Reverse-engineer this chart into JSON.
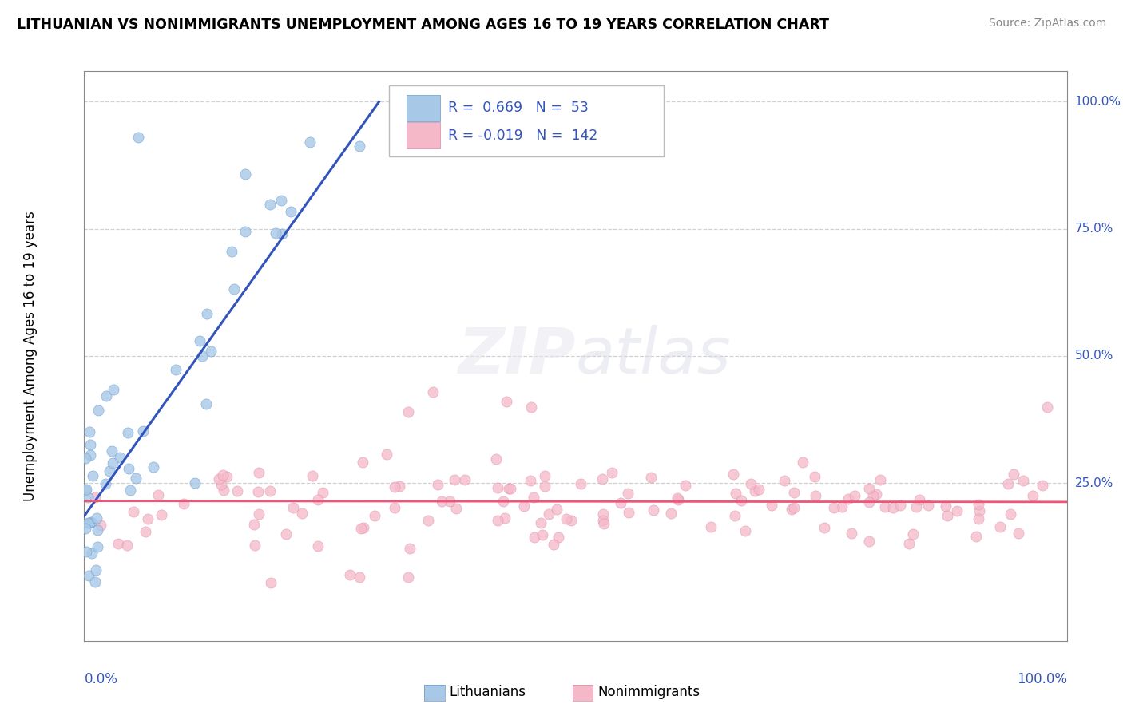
{
  "title": "LITHUANIAN VS NONIMMIGRANTS UNEMPLOYMENT AMONG AGES 16 TO 19 YEARS CORRELATION CHART",
  "source": "Source: ZipAtlas.com",
  "ylabel": "Unemployment Among Ages 16 to 19 years",
  "ylabel_right_ticks": [
    "100.0%",
    "75.0%",
    "50.0%",
    "25.0%"
  ],
  "ylabel_right_vals": [
    1.0,
    0.75,
    0.5,
    0.25
  ],
  "xlim": [
    0,
    1
  ],
  "ylim": [
    -0.06,
    1.06
  ],
  "background_color": "#ffffff",
  "grid_color": "#cccccc",
  "blue_color": "#a8c8e8",
  "blue_edge_color": "#6699cc",
  "blue_line_color": "#3355bb",
  "pink_color": "#f5b8c8",
  "pink_edge_color": "#dd88aa",
  "pink_line_color": "#ee5577",
  "legend_R_blue": "0.669",
  "legend_N_blue": "53",
  "legend_R_pink": "-0.019",
  "legend_N_pink": "142",
  "legend_text_color": "#3355bb",
  "blue_trend_x": [
    0.0,
    0.3
  ],
  "blue_trend_y": [
    0.185,
    1.0
  ],
  "pink_trend_x": [
    0.0,
    1.0
  ],
  "pink_trend_y": [
    0.215,
    0.213
  ]
}
